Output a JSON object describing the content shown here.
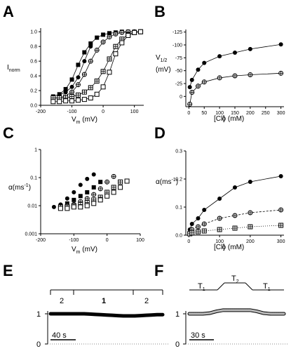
{
  "panels": {
    "A": {
      "label": "A",
      "ylabel": "I",
      "ylabel_sub": "norm",
      "xlabel": "V",
      "xlabel_sub": "m",
      "xlabel_unit": " (mV)",
      "xticks": [
        "-200",
        "-100",
        "0",
        "100"
      ],
      "yticks": [
        "0.0",
        "0.2",
        "0.4",
        "0.6",
        "0.8",
        "1.0"
      ]
    },
    "B": {
      "label": "B",
      "ylabel": "V",
      "ylabel_sub": "1/2",
      "ylabel_unit": "(mV)",
      "xlabel": "[Cl",
      "xlabel_sup": "-",
      "xlabel_sub": "o",
      "xlabel_unit": " (mM)",
      "xticks": [
        "0",
        "50",
        "100",
        "150",
        "200",
        "250",
        "300"
      ],
      "yticks": [
        "0",
        "-25",
        "-50",
        "-75",
        "-100",
        "-125"
      ]
    },
    "C": {
      "label": "C",
      "ylabel": "α(ms",
      "ylabel_sup": "-1",
      "ylabel_end": ")",
      "xlabel": "V",
      "xlabel_sub": "m",
      "xlabel_unit": " (mV)",
      "xticks": [
        "-200",
        "-100",
        "0",
        "100"
      ],
      "yticks": [
        "1",
        "0.1",
        "0.01",
        "0.001"
      ]
    },
    "D": {
      "label": "D",
      "ylabel": "α(ms",
      "ylabel_sup": "-1",
      "ylabel_end": ")",
      "xlabel": "[Cl",
      "xlabel_sup": "-",
      "xlabel_sub": "o",
      "xlabel_unit": " (mM)",
      "xticks": [
        "0",
        "100",
        "200",
        "300"
      ],
      "yticks": [
        "0.0",
        "0.1",
        "0.2",
        "0.3"
      ]
    },
    "E": {
      "label": "E",
      "segments": [
        "2",
        "1",
        "2"
      ],
      "yticks": [
        "1",
        "0"
      ],
      "scalebar": "40 s"
    },
    "F": {
      "label": "F",
      "segments": [
        {
          "text": "T",
          "sub": "1"
        },
        {
          "text": "T",
          "sub": "2"
        },
        {
          "text": "T",
          "sub": "1"
        }
      ],
      "yticks": [
        "1",
        "0"
      ],
      "scalebar": "30 s"
    }
  },
  "chart_data": [
    {
      "panel": "A",
      "type": "scatter",
      "xlabel": "Vm (mV)",
      "ylabel": "Inorm",
      "xlim": [
        -200,
        130
      ],
      "ylim": [
        0,
        1.05
      ],
      "series": [
        {
          "marker": "filled-square",
          "x": [
            -160,
            -140,
            -120,
            -100,
            -80,
            -60,
            -40,
            -20,
            0,
            20,
            40,
            60,
            80,
            100,
            120
          ],
          "y": [
            0.12,
            0.15,
            0.22,
            0.35,
            0.55,
            0.72,
            0.84,
            0.92,
            0.96,
            0.98,
            0.99,
            1.0,
            1.0,
            1.0,
            1.0
          ]
        },
        {
          "marker": "filled-circle",
          "x": [
            -140,
            -120,
            -100,
            -80,
            -60,
            -40
          ],
          "y": [
            0.14,
            0.18,
            0.25,
            0.38,
            0.6,
            0.8
          ]
        },
        {
          "marker": "crossed-circle",
          "x": [
            -160,
            -140,
            -120,
            -100,
            -80,
            -60,
            -40,
            -20,
            0,
            20,
            40,
            60,
            80,
            100,
            120
          ],
          "y": [
            0.1,
            0.1,
            0.13,
            0.18,
            0.28,
            0.42,
            0.6,
            0.75,
            0.86,
            0.93,
            0.97,
            0.99,
            1.0,
            1.0,
            1.0
          ]
        },
        {
          "marker": "crossed-square",
          "x": [
            -160,
            -140,
            -120,
            -100,
            -80,
            -60,
            -40,
            -20,
            0,
            20,
            40,
            60,
            80,
            100,
            120
          ],
          "y": [
            0.1,
            0.1,
            0.1,
            0.12,
            0.14,
            0.18,
            0.24,
            0.33,
            0.46,
            0.63,
            0.8,
            0.9,
            0.96,
            0.99,
            1.0
          ]
        },
        {
          "marker": "open-square",
          "x": [
            -160,
            -140,
            -120,
            -100,
            -80,
            -60,
            -40,
            -20,
            0,
            20,
            40,
            60,
            80,
            100,
            120
          ],
          "y": [
            0.05,
            0.05,
            0.06,
            0.06,
            0.07,
            0.08,
            0.1,
            0.15,
            0.25,
            0.45,
            0.7,
            0.85,
            0.95,
            0.99,
            1.0
          ]
        }
      ]
    },
    {
      "panel": "B",
      "type": "scatter",
      "xlabel": "[Cl-]o (mM)",
      "ylabel": "V1/2 (mV)",
      "xlim": [
        -10,
        310
      ],
      "ylim": [
        20,
        -130
      ],
      "series": [
        {
          "marker": "filled-circle",
          "x": [
            3,
            10,
            30,
            50,
            100,
            150,
            200,
            300
          ],
          "y": [
            -18,
            -32,
            -52,
            -65,
            -78,
            -85,
            -92,
            -101
          ]
        },
        {
          "marker": "crossed-circle",
          "x": [
            3,
            10,
            30,
            50,
            100,
            150,
            200,
            300
          ],
          "y": [
            15,
            -8,
            -20,
            -28,
            -36,
            -40,
            -42,
            -45
          ]
        }
      ]
    },
    {
      "panel": "C",
      "type": "scatter",
      "xlabel": "Vm (mV)",
      "ylabel": "α(ms-1)",
      "xscale": "log-y",
      "xlim": [
        -200,
        100
      ],
      "ylim": [
        0.001,
        1
      ],
      "series": [
        {
          "marker": "filled-circle",
          "x": [
            -160,
            -140,
            -120,
            -100,
            -80,
            -60,
            -40
          ],
          "y": [
            0.009,
            0.011,
            0.018,
            0.03,
            0.055,
            0.09,
            0.13
          ]
        },
        {
          "marker": "filled-square",
          "x": [
            -140,
            -120,
            -100,
            -80,
            -60,
            -40,
            -20
          ],
          "y": [
            0.01,
            0.012,
            0.016,
            0.022,
            0.03,
            0.045,
            0.07
          ]
        },
        {
          "marker": "crossed-circle",
          "x": [
            -140,
            -120,
            -100,
            -80,
            -60,
            -40,
            -20,
            0,
            20
          ],
          "y": [
            0.009,
            0.01,
            0.011,
            0.014,
            0.018,
            0.025,
            0.04,
            0.07,
            0.11
          ]
        },
        {
          "marker": "crossed-square",
          "x": [
            -140,
            -120,
            -100,
            -80,
            -60,
            -40,
            -20,
            0,
            20,
            40
          ],
          "y": [
            0.009,
            0.009,
            0.01,
            0.011,
            0.013,
            0.016,
            0.02,
            0.03,
            0.045,
            0.07
          ]
        },
        {
          "marker": "open-square",
          "x": [
            -140,
            -120,
            -100,
            -80,
            -60,
            -40,
            -20,
            0,
            20,
            40,
            60
          ],
          "y": [
            0.008,
            0.008,
            0.009,
            0.009,
            0.01,
            0.012,
            0.016,
            0.022,
            0.03,
            0.045,
            0.075
          ]
        }
      ]
    },
    {
      "panel": "D",
      "type": "scatter",
      "xlabel": "[Cl-]o (mM)",
      "ylabel": "α(ms-1)",
      "xlim": [
        -10,
        310
      ],
      "ylim": [
        0,
        0.3
      ],
      "series": [
        {
          "marker": "filled-circle",
          "x": [
            3,
            10,
            30,
            50,
            100,
            150,
            200,
            300
          ],
          "y": [
            0.02,
            0.04,
            0.06,
            0.09,
            0.13,
            0.17,
            0.19,
            0.21
          ]
        },
        {
          "marker": "crossed-circle",
          "x": [
            3,
            10,
            30,
            50,
            100,
            150,
            200,
            300
          ],
          "y": [
            0.01,
            0.02,
            0.03,
            0.04,
            0.06,
            0.07,
            0.08,
            0.09
          ]
        },
        {
          "marker": "crossed-square",
          "x": [
            3,
            10,
            30,
            50,
            100,
            150,
            200,
            300
          ],
          "y": [
            0.005,
            0.008,
            0.012,
            0.015,
            0.02,
            0.025,
            0.03,
            0.035
          ]
        }
      ]
    },
    {
      "panel": "E",
      "type": "line",
      "ylim": [
        0,
        1.2
      ],
      "series": [
        {
          "x": [
            0,
            10,
            20,
            30,
            40,
            50,
            60,
            70,
            80,
            90,
            100,
            110,
            120,
            130,
            140,
            150,
            160,
            170,
            180,
            190,
            200
          ],
          "y": [
            1.0,
            1.0,
            1.0,
            1.0,
            1.0,
            1.0,
            1.0,
            0.99,
            0.98,
            0.97,
            0.96,
            0.95,
            0.94,
            0.93,
            0.93,
            0.93,
            0.94,
            0.95,
            0.96,
            0.97,
            0.97
          ]
        }
      ]
    },
    {
      "panel": "F",
      "type": "line",
      "ylim": [
        0,
        1.2
      ],
      "series": [
        {
          "x": [
            0,
            10,
            20,
            30,
            40,
            50,
            60,
            70,
            80,
            90,
            100,
            110,
            120,
            130,
            140
          ],
          "y": [
            1.0,
            1.0,
            1.0,
            1.02,
            1.08,
            1.12,
            1.12,
            1.12,
            1.12,
            1.12,
            1.08,
            1.02,
            1.0,
            1.0,
            1.0
          ]
        }
      ]
    }
  ]
}
